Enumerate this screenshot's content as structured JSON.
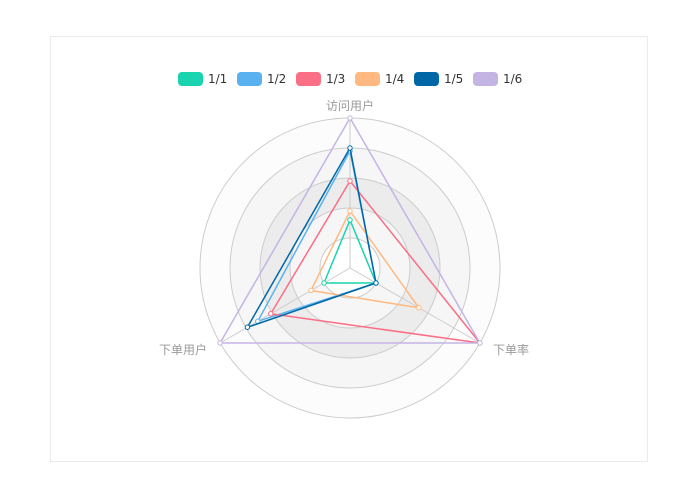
{
  "chart_data": {
    "type": "radar",
    "indicators": [
      {
        "name": "访问用户",
        "max": 100
      },
      {
        "name": "下单率",
        "max": 100
      },
      {
        "name": "下单用户",
        "max": 100
      }
    ],
    "series": [
      {
        "name": "1/1",
        "color": "#19d4ae",
        "values": [
          32,
          20,
          20
        ]
      },
      {
        "name": "1/2",
        "color": "#5ab1ef",
        "values": [
          78,
          20,
          71
        ]
      },
      {
        "name": "1/3",
        "color": "#fa6e86",
        "values": [
          58,
          100,
          61
        ]
      },
      {
        "name": "1/4",
        "color": "#ffb980",
        "values": [
          38,
          53,
          30
        ]
      },
      {
        "name": "1/5",
        "color": "#0067a6",
        "values": [
          80,
          20,
          79
        ]
      },
      {
        "name": "1/6",
        "color": "#c4b4e4",
        "values": [
          100,
          100,
          100
        ]
      }
    ],
    "legend_placement": "top-center",
    "split_number": 5
  }
}
